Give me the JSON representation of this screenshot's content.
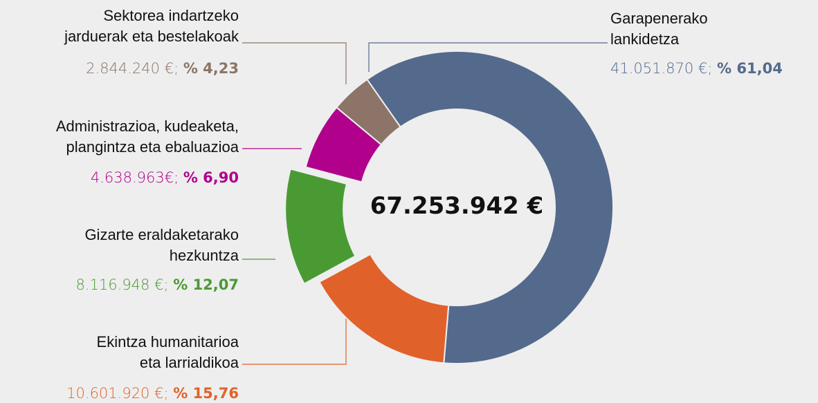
{
  "chart_data": {
    "type": "donut",
    "total": "67.253.942 €",
    "categories": [
      "Garapenerako\nlankidetza",
      "Ekintza humanitarioa\neta larrialdikoa",
      "Gizarte eraldaketarako\nhezkuntza",
      "Administrazioa, kudeaketa,\nplangintza eta ebaluazioa",
      "Sektorea indartzeko\njarduerak eta bestelakoak"
    ],
    "values": [
      61.04,
      15.76,
      12.07,
      6.9,
      4.23
    ],
    "value_labels": [
      "% 61,04",
      "% 15,76",
      "% 12,07",
      "% 6,90",
      "% 4,23"
    ],
    "amount_labels": [
      "41.051.870 €;",
      "10.601.920 €;",
      "8.116.948 €;",
      "4.638.963€;",
      "2.844.240 €;"
    ],
    "colors": [
      "#546a8c",
      "#e0622a",
      "#4a9a33",
      "#b0008c",
      "#8c7468"
    ],
    "exploded": [
      false,
      false,
      true,
      false,
      false
    ]
  }
}
